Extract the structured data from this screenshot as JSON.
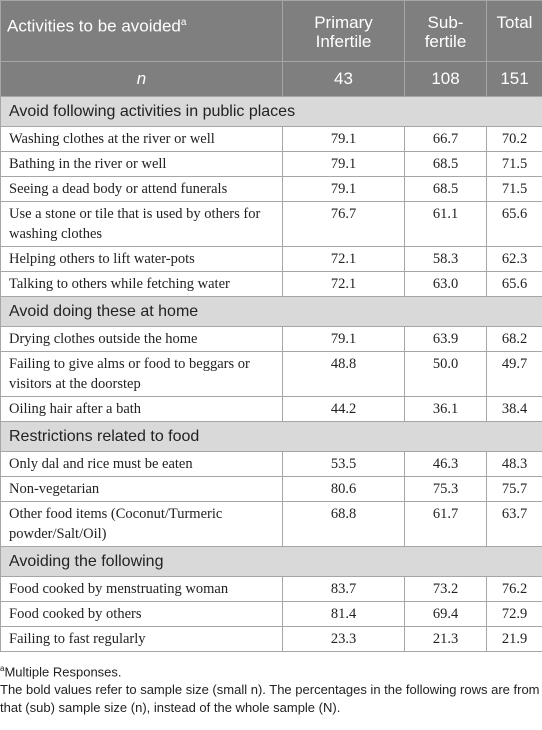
{
  "table": {
    "header": {
      "columns": [
        "Activities to be avoided",
        "Primary Infertile",
        "Sub-fertile",
        "Total"
      ],
      "superscript": "a"
    },
    "n_row": [
      "n",
      "43",
      "108",
      "151"
    ],
    "sections": [
      {
        "title": "Avoid following activities in public places",
        "rows": [
          [
            "Washing clothes at the river or well",
            "79.1",
            "66.7",
            "70.2"
          ],
          [
            "Bathing in the river or well",
            "79.1",
            "68.5",
            "71.5"
          ],
          [
            "Seeing a dead body or attend funerals",
            "79.1",
            "68.5",
            "71.5"
          ],
          [
            "Use a stone or tile that is used by others for washing clothes",
            "76.7",
            "61.1",
            "65.6"
          ],
          [
            "Helping others to lift water-pots",
            "72.1",
            "58.3",
            "62.3"
          ],
          [
            "Talking to others while fetching water",
            "72.1",
            "63.0",
            "65.6"
          ]
        ]
      },
      {
        "title": "Avoid doing these at home",
        "rows": [
          [
            "Drying clothes outside the home",
            "79.1",
            "63.9",
            "68.2"
          ],
          [
            "Failing to give alms or food to beggars or visitors at the doorstep",
            "48.8",
            "50.0",
            "49.7"
          ],
          [
            "Oiling hair after a bath",
            "44.2",
            "36.1",
            "38.4"
          ]
        ]
      },
      {
        "title": "Restrictions related to food",
        "rows": [
          [
            "Only dal and rice must be eaten",
            "53.5",
            "46.3",
            "48.3"
          ],
          [
            "Non-vegetarian",
            "80.6",
            "75.3",
            "75.7"
          ],
          [
            "Other food items (Coconut/Turmeric powder/Salt/Oil)",
            "68.8",
            "61.7",
            "63.7"
          ]
        ]
      },
      {
        "title": "Avoiding the following",
        "rows": [
          [
            "Food cooked by menstruating woman",
            "83.7",
            "73.2",
            "76.2"
          ],
          [
            "Food cooked by others",
            "81.4",
            "69.4",
            "72.9"
          ],
          [
            "Failing to fast regularly",
            "23.3",
            "21.3",
            "21.9"
          ]
        ]
      }
    ]
  },
  "footnotes": {
    "marker": "a",
    "note": "Multiple Responses.",
    "text": "The bold values refer to sample size (small n). The percentages in the following rows are from that (sub) sample size (n), instead of the whole sample (N)."
  }
}
